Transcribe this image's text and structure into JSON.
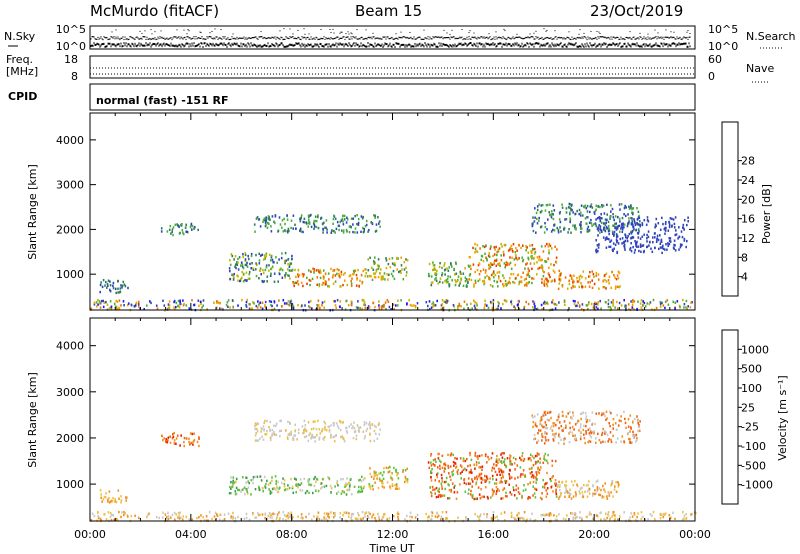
{
  "header": {
    "station": "McMurdo (fitACF)",
    "beam": "Beam 15",
    "date": "23/Oct/2019"
  },
  "noise_panel": {
    "left_label": "N.Sky",
    "right_label": "N.Search",
    "left_ticks": [
      "10^5",
      "10^0"
    ],
    "right_ticks": [
      "10^5",
      "10^0"
    ]
  },
  "freq_panel": {
    "label_line1": "Freq.",
    "label_line2": "[MHz]",
    "right_label": "Nave",
    "left_ticks": [
      "18",
      "8"
    ],
    "right_ticks": [
      "60",
      "0"
    ]
  },
  "cpid_panel": {
    "label": "CPID",
    "mode_text": "normal (fast) -151 RF"
  },
  "chart_data": [
    {
      "type": "heatmap",
      "name": "Power",
      "ylabel": "Slant Range [km]",
      "xlabel": "",
      "y_ticks": [
        1000,
        2000,
        3000,
        4000
      ],
      "ylim": [
        200,
        4600
      ],
      "x_ticks": [
        "00:00",
        "04:00",
        "08:00",
        "12:00",
        "16:00",
        "20:00",
        "00:00"
      ],
      "xlim_hours": [
        0,
        24
      ],
      "colorbar": {
        "title": "Power [dB]",
        "ticks": [
          4,
          8,
          12,
          16,
          20,
          24,
          28
        ],
        "colors": [
          "#1a14ff",
          "#2f44b8",
          "#2e7d5a",
          "#4cae3a",
          "#c8b400",
          "#f5a000",
          "#f07200",
          "#e53d00",
          "#d40000"
        ]
      }
    },
    {
      "type": "heatmap",
      "name": "Velocity",
      "ylabel": "Slant Range [km]",
      "xlabel": "Time UT",
      "y_ticks": [
        1000,
        2000,
        3000,
        4000
      ],
      "ylim": [
        200,
        4600
      ],
      "x_ticks": [
        "00:00",
        "04:00",
        "08:00",
        "12:00",
        "16:00",
        "20:00",
        "00:00"
      ],
      "xlim_hours": [
        0,
        24
      ],
      "colorbar": {
        "title": "Velocity [m s⁻¹]",
        "ticks": [
          "1000",
          "500",
          "100",
          "25",
          "-25",
          "-100",
          "-500",
          "-1000"
        ],
        "colors": [
          "#2020d0",
          "#3060b0",
          "#3a9a50",
          "#60c040",
          "#c8c8c8",
          "#f0c040",
          "#f09020",
          "#f06010",
          "#e02000"
        ]
      }
    }
  ],
  "scatter_regions": {
    "power": [
      {
        "t0": 2.8,
        "t1": 4.3,
        "r0": 1900,
        "r1": 2150,
        "c": [
          2,
          3,
          1
        ]
      },
      {
        "t0": 5.5,
        "t1": 8.0,
        "r0": 850,
        "r1": 1500,
        "c": [
          1,
          2,
          3,
          4
        ]
      },
      {
        "t0": 8.0,
        "t1": 11.0,
        "r0": 750,
        "r1": 1150,
        "c": [
          3,
          4,
          5,
          6,
          7
        ]
      },
      {
        "t0": 11.0,
        "t1": 12.6,
        "r0": 900,
        "r1": 1400,
        "c": [
          2,
          3,
          4,
          5
        ]
      },
      {
        "t0": 6.5,
        "t1": 11.5,
        "r0": 1950,
        "r1": 2350,
        "c": [
          1,
          2,
          3
        ]
      },
      {
        "t0": 13.4,
        "t1": 15.0,
        "r0": 750,
        "r1": 1300,
        "c": [
          2,
          3,
          4
        ]
      },
      {
        "t0": 15.0,
        "t1": 18.5,
        "r0": 750,
        "r1": 1700,
        "c": [
          3,
          4,
          5,
          6,
          7
        ]
      },
      {
        "t0": 18.5,
        "t1": 21.0,
        "r0": 700,
        "r1": 1100,
        "c": [
          4,
          5,
          6,
          7
        ]
      },
      {
        "t0": 17.5,
        "t1": 21.8,
        "r0": 1950,
        "r1": 2600,
        "c": [
          1,
          2,
          3
        ]
      },
      {
        "t0": 0.3,
        "t1": 1.5,
        "r0": 600,
        "r1": 900,
        "c": [
          1,
          2
        ]
      },
      {
        "t0": 20.0,
        "t1": 23.7,
        "r0": 1500,
        "r1": 2300,
        "c": [
          1
        ]
      },
      {
        "t0": 0.0,
        "t1": 24.0,
        "r0": 220,
        "r1": 450,
        "c": [
          0,
          1,
          3,
          4,
          5,
          6
        ]
      }
    ],
    "velocity": [
      {
        "t0": 2.8,
        "t1": 4.3,
        "r0": 1850,
        "r1": 2150,
        "c": [
          6,
          7,
          8
        ]
      },
      {
        "t0": 5.5,
        "t1": 11.0,
        "r0": 800,
        "r1": 1200,
        "c": [
          2,
          3,
          3,
          4,
          5
        ]
      },
      {
        "t0": 11.0,
        "t1": 12.6,
        "r0": 900,
        "r1": 1400,
        "c": [
          3,
          5,
          6
        ]
      },
      {
        "t0": 6.5,
        "t1": 11.5,
        "r0": 1950,
        "r1": 2400,
        "c": [
          4,
          4,
          5
        ]
      },
      {
        "t0": 13.4,
        "t1": 18.5,
        "r0": 700,
        "r1": 1700,
        "c": [
          6,
          7,
          7,
          8,
          3
        ]
      },
      {
        "t0": 18.5,
        "t1": 21.0,
        "r0": 700,
        "r1": 1100,
        "c": [
          4,
          5,
          6
        ]
      },
      {
        "t0": 17.5,
        "t1": 21.8,
        "r0": 1900,
        "r1": 2600,
        "c": [
          4,
          6,
          7
        ]
      },
      {
        "t0": 0.3,
        "t1": 1.5,
        "r0": 600,
        "r1": 900,
        "c": [
          5,
          6
        ]
      },
      {
        "t0": 0.0,
        "t1": 24.0,
        "r0": 220,
        "r1": 420,
        "c": [
          4,
          5,
          6
        ]
      }
    ]
  }
}
